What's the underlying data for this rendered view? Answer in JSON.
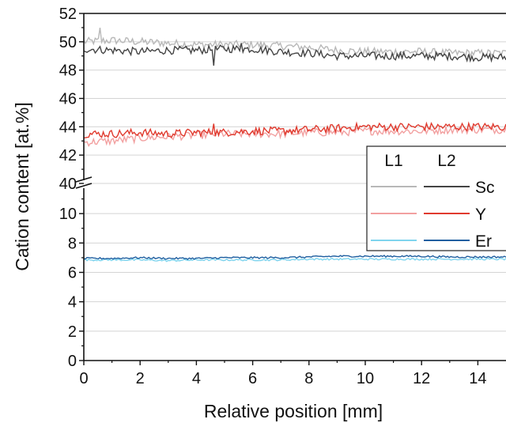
{
  "chart_data": {
    "type": "line",
    "title": "",
    "xlabel": "Relative position [mm]",
    "ylabel": "Cation content [at.%]",
    "xlim": [
      0,
      15
    ],
    "x_ticks": [
      0,
      2,
      4,
      6,
      8,
      10,
      12,
      14
    ],
    "y_axis_break": true,
    "upper_panel": {
      "ylim": [
        40,
        52
      ],
      "y_ticks": [
        40,
        42,
        44,
        46,
        48,
        50,
        52
      ]
    },
    "lower_panel": {
      "ylim": [
        0,
        12
      ],
      "y_ticks": [
        0,
        2,
        4,
        6,
        8,
        10
      ]
    },
    "grid": "horizontal",
    "legend": {
      "placement": "right",
      "column_headers": [
        "L1",
        "L2"
      ],
      "rows": [
        "Sc",
        "Y",
        "Er"
      ]
    },
    "series": [
      {
        "name": "Sc",
        "line": "L1",
        "color": "#b8b8b8",
        "panel": "upper",
        "x": [
          0,
          1,
          2,
          3,
          4,
          5,
          6,
          7,
          8,
          9,
          10,
          11,
          12,
          13,
          14,
          15
        ],
        "values": [
          50.0,
          50.1,
          50.0,
          49.9,
          49.8,
          49.8,
          49.8,
          49.7,
          49.6,
          49.4,
          49.3,
          49.3,
          49.3,
          49.2,
          49.2,
          49.2
        ]
      },
      {
        "name": "Sc",
        "line": "L2",
        "color": "#444444",
        "panel": "upper",
        "x": [
          0,
          1,
          2,
          3,
          4,
          5,
          6,
          7,
          8,
          9,
          10,
          11,
          12,
          13,
          14,
          15
        ],
        "values": [
          49.5,
          49.4,
          49.3,
          49.4,
          49.4,
          49.5,
          49.5,
          49.3,
          49.2,
          49.0,
          49.0,
          49.0,
          49.0,
          49.0,
          48.9,
          48.9
        ]
      },
      {
        "name": "Y",
        "line": "L1",
        "color": "#f2a0a0",
        "panel": "upper",
        "x": [
          0,
          1,
          2,
          3,
          4,
          5,
          6,
          7,
          8,
          9,
          10,
          11,
          12,
          13,
          14,
          15
        ],
        "values": [
          42.9,
          43.0,
          43.2,
          43.3,
          43.4,
          43.5,
          43.5,
          43.5,
          43.6,
          43.6,
          43.7,
          43.7,
          43.7,
          43.8,
          43.8,
          43.8
        ]
      },
      {
        "name": "Y",
        "line": "L2",
        "color": "#e03a2e",
        "panel": "upper",
        "x": [
          0,
          1,
          2,
          3,
          4,
          5,
          6,
          7,
          8,
          9,
          10,
          11,
          12,
          13,
          14,
          15
        ],
        "values": [
          43.5,
          43.5,
          43.6,
          43.5,
          43.6,
          43.6,
          43.7,
          43.7,
          43.8,
          43.9,
          44.0,
          44.0,
          44.0,
          44.0,
          44.0,
          44.0
        ]
      },
      {
        "name": "Er",
        "line": "L1",
        "color": "#7fd4ee",
        "panel": "lower",
        "x": [
          0,
          1,
          2,
          3,
          4,
          5,
          6,
          7,
          8,
          9,
          10,
          11,
          12,
          13,
          14,
          15
        ],
        "values": [
          6.85,
          6.85,
          6.85,
          6.8,
          6.85,
          6.85,
          6.85,
          6.85,
          6.9,
          6.9,
          6.9,
          6.9,
          6.9,
          6.9,
          6.9,
          6.9
        ]
      },
      {
        "name": "Er",
        "line": "L2",
        "color": "#1f5fa0",
        "panel": "lower",
        "x": [
          0,
          1,
          2,
          3,
          4,
          5,
          6,
          7,
          8,
          9,
          10,
          11,
          12,
          13,
          14,
          15
        ],
        "values": [
          6.95,
          6.95,
          7.0,
          6.95,
          6.95,
          7.0,
          7.0,
          7.0,
          7.05,
          7.1,
          7.1,
          7.1,
          7.1,
          7.05,
          7.05,
          7.05
        ]
      }
    ]
  }
}
